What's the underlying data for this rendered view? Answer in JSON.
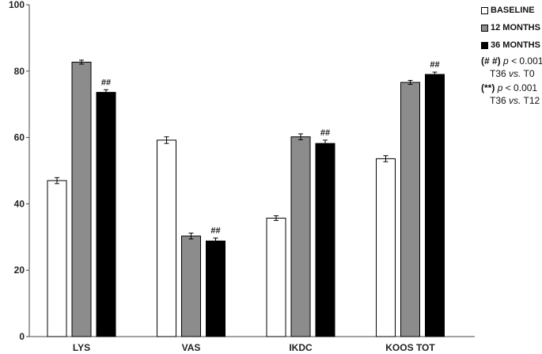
{
  "chart_data": {
    "type": "bar",
    "categories": [
      "LYS",
      "VAS",
      "IKDC",
      "KOOS TOT"
    ],
    "series": [
      {
        "name": "BASELINE",
        "color": "#ffffff",
        "values": [
          47.0,
          59.2,
          35.7,
          53.6
        ],
        "errors": [
          0.9,
          1.0,
          0.7,
          0.9
        ]
      },
      {
        "name": "12 MONTHS",
        "color": "#8c8c8c",
        "values": [
          82.7,
          30.3,
          60.2,
          76.6
        ],
        "errors": [
          0.6,
          0.9,
          0.9,
          0.6
        ]
      },
      {
        "name": "36 MONTHS",
        "color": "#000000",
        "values": [
          73.6,
          28.8,
          58.2,
          79.0
        ],
        "errors": [
          0.8,
          0.9,
          1.0,
          0.7
        ]
      }
    ],
    "significance": [
      {
        "category": "LYS",
        "series": "36 MONTHS",
        "label": "##"
      },
      {
        "category": "VAS",
        "series": "36 MONTHS",
        "label": "##"
      },
      {
        "category": "IKDC",
        "series": "36 MONTHS",
        "label": "##"
      },
      {
        "category": "KOOS TOT",
        "series": "36 MONTHS",
        "label": "##"
      }
    ],
    "ylim": [
      0,
      100
    ],
    "yticks": [
      0,
      20,
      40,
      60,
      80,
      100
    ],
    "grid": false,
    "legend_position": "top-right"
  },
  "legend": {
    "items": [
      {
        "label": "BASELINE",
        "color": "#ffffff"
      },
      {
        "label": "12 MONTHS",
        "color": "#8c8c8c"
      },
      {
        "label": "36 MONTHS",
        "color": "#000000"
      }
    ],
    "notes": [
      {
        "marker": "(# #)",
        "p": "p",
        "comparison": "< 0.001",
        "t_left": "T36",
        "vs": "vs.",
        "t_right": "T0"
      },
      {
        "marker": "(**)",
        "p": "p",
        "comparison": "< 0.001",
        "t_left": "T36",
        "vs": "vs.",
        "t_right": "T12"
      }
    ]
  }
}
